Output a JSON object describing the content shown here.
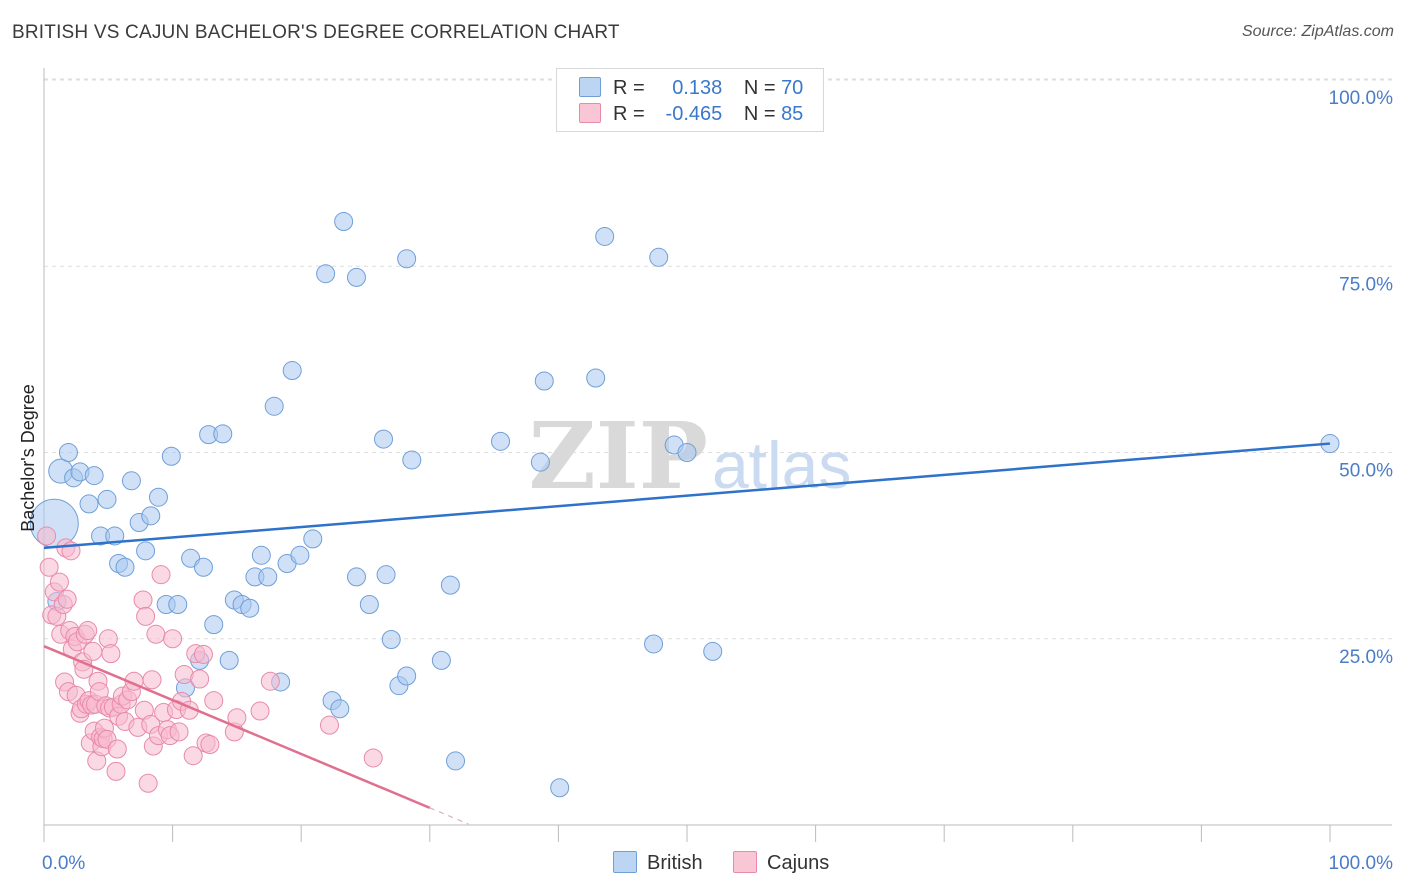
{
  "chart_data": {
    "type": "scatter",
    "title": "BRITISH VS CAJUN BACHELOR'S DEGREE CORRELATION CHART",
    "source": "Source: ZipAtlas.com",
    "ylabel": "Bachelor's Degree",
    "xlim": [
      0,
      100
    ],
    "ylim": [
      0,
      100
    ],
    "x_tick_labels": [
      "0.0%",
      "100.0%"
    ],
    "y_tick_labels": [
      {
        "value": 100,
        "label": "100.0%"
      },
      {
        "value": 75,
        "label": "75.0%"
      },
      {
        "value": 50,
        "label": "50.0%"
      },
      {
        "value": 25,
        "label": "25.0%"
      }
    ],
    "watermark": "ZIPatlas",
    "legend": [
      {
        "name": "British",
        "r_label": "R =",
        "r": "0.138",
        "n_label": "N =",
        "n": "70",
        "color": "#a9c9f0",
        "edge": "#6f9fd8"
      },
      {
        "name": "Cajuns",
        "r_label": "R =",
        "r": "-0.465",
        "n_label": "N =",
        "n": "85",
        "color": "#f7b9cd",
        "edge": "#e88aaa"
      }
    ],
    "series": [
      {
        "name": "British",
        "color": "#a9c9f0",
        "edge": "#6f9fd8",
        "trend": {
          "x0": 0,
          "y0": 37.2,
          "x1": 100,
          "y1": 51.2,
          "color": "#2e72c9"
        },
        "points": [
          [
            0.8,
            40.5,
            24
          ],
          [
            1.3,
            47.5,
            12
          ],
          [
            1.9,
            50.0,
            9
          ],
          [
            2.3,
            46.6,
            9
          ],
          [
            2.8,
            47.4,
            9
          ],
          [
            3.5,
            43.1,
            9
          ],
          [
            3.9,
            46.9,
            9
          ],
          [
            4.4,
            38.8,
            9
          ],
          [
            4.9,
            43.7,
            9
          ],
          [
            5.5,
            38.8,
            9
          ],
          [
            5.8,
            35.1,
            9
          ],
          [
            6.3,
            34.6,
            9
          ],
          [
            6.8,
            46.2,
            9
          ],
          [
            7.4,
            40.6,
            9
          ],
          [
            7.9,
            36.8,
            9
          ],
          [
            8.3,
            41.5,
            9
          ],
          [
            8.9,
            44.0,
            9
          ],
          [
            9.5,
            29.6,
            9
          ],
          [
            9.9,
            49.5,
            9
          ],
          [
            10.4,
            29.6,
            9
          ],
          [
            11.0,
            18.4,
            9
          ],
          [
            11.4,
            35.8,
            9
          ],
          [
            12.1,
            22.1,
            9
          ],
          [
            12.4,
            34.6,
            9
          ],
          [
            12.8,
            52.4,
            9
          ],
          [
            13.2,
            26.9,
            9
          ],
          [
            13.9,
            52.5,
            9
          ],
          [
            14.4,
            22.1,
            9
          ],
          [
            14.8,
            30.2,
            9
          ],
          [
            15.4,
            29.6,
            9
          ],
          [
            16.0,
            29.1,
            9
          ],
          [
            16.4,
            33.3,
            9
          ],
          [
            16.9,
            36.2,
            9
          ],
          [
            17.4,
            33.3,
            9
          ],
          [
            17.9,
            56.2,
            9
          ],
          [
            18.4,
            19.2,
            9
          ],
          [
            18.9,
            35.1,
            9
          ],
          [
            19.3,
            61.0,
            9
          ],
          [
            19.9,
            36.2,
            9
          ],
          [
            20.9,
            38.4,
            9
          ],
          [
            21.9,
            74.0,
            9
          ],
          [
            22.4,
            16.7,
            9
          ],
          [
            23.0,
            15.6,
            9
          ],
          [
            23.3,
            81.0,
            9
          ],
          [
            24.3,
            73.5,
            9
          ],
          [
            24.3,
            33.3,
            9
          ],
          [
            25.3,
            29.6,
            9
          ],
          [
            26.4,
            51.8,
            9
          ],
          [
            26.6,
            33.6,
            9
          ],
          [
            27.0,
            24.9,
            9
          ],
          [
            27.6,
            18.7,
            9
          ],
          [
            28.2,
            76.0,
            9
          ],
          [
            28.6,
            49.0,
            9
          ],
          [
            28.2,
            20.0,
            9
          ],
          [
            30.9,
            22.1,
            9
          ],
          [
            31.6,
            32.2,
            9
          ],
          [
            32.0,
            8.6,
            9
          ],
          [
            35.5,
            51.5,
            9
          ],
          [
            38.6,
            48.7,
            9
          ],
          [
            38.9,
            59.6,
            9
          ],
          [
            40.1,
            5.0,
            9
          ],
          [
            42.9,
            60.0,
            9
          ],
          [
            43.6,
            79.0,
            9
          ],
          [
            47.4,
            24.3,
            9
          ],
          [
            47.8,
            76.2,
            9
          ],
          [
            49.0,
            51.0,
            9
          ],
          [
            50.0,
            50.0,
            9
          ],
          [
            52.0,
            23.3,
            9
          ],
          [
            1.0,
            30.0,
            9
          ],
          [
            100,
            51.2,
            9
          ]
        ]
      },
      {
        "name": "Cajuns",
        "color": "#f7b9cd",
        "edge": "#e88aaa",
        "trend": {
          "x0": 0,
          "y0": 24.0,
          "x1": 30.0,
          "y1": 2.3,
          "color": "#e0708f",
          "dash_to_x": 33.0
        },
        "points": [
          [
            0.2,
            38.8,
            9
          ],
          [
            0.4,
            34.6,
            9
          ],
          [
            0.6,
            28.2,
            9
          ],
          [
            0.8,
            31.3,
            9
          ],
          [
            1.0,
            28.0,
            9
          ],
          [
            1.2,
            32.6,
            9
          ],
          [
            1.3,
            25.6,
            9
          ],
          [
            1.5,
            29.6,
            9
          ],
          [
            1.6,
            19.2,
            9
          ],
          [
            1.7,
            37.2,
            9
          ],
          [
            1.8,
            30.3,
            9
          ],
          [
            1.9,
            17.9,
            9
          ],
          [
            2.0,
            26.1,
            9
          ],
          [
            2.1,
            36.8,
            9
          ],
          [
            2.2,
            23.6,
            9
          ],
          [
            2.4,
            25.3,
            9
          ],
          [
            2.5,
            17.4,
            9
          ],
          [
            2.6,
            24.6,
            9
          ],
          [
            2.8,
            15.0,
            9
          ],
          [
            2.9,
            15.6,
            9
          ],
          [
            3.0,
            21.9,
            9
          ],
          [
            3.1,
            20.9,
            9
          ],
          [
            3.2,
            25.6,
            9
          ],
          [
            3.3,
            16.2,
            9
          ],
          [
            3.4,
            26.1,
            9
          ],
          [
            3.5,
            16.7,
            9
          ],
          [
            3.6,
            11.0,
            9
          ],
          [
            3.7,
            16.1,
            9
          ],
          [
            3.8,
            23.3,
            9
          ],
          [
            3.9,
            12.6,
            9
          ],
          [
            4.0,
            16.2,
            9
          ],
          [
            4.1,
            8.6,
            9
          ],
          [
            4.2,
            19.3,
            9
          ],
          [
            4.3,
            17.9,
            9
          ],
          [
            4.4,
            11.8,
            9
          ],
          [
            4.5,
            10.5,
            9
          ],
          [
            4.6,
            11.6,
            9
          ],
          [
            4.7,
            13.0,
            9
          ],
          [
            4.8,
            16.0,
            9
          ],
          [
            4.9,
            11.5,
            9
          ],
          [
            5.0,
            25.0,
            9
          ],
          [
            5.1,
            15.7,
            9
          ],
          [
            5.2,
            23.0,
            9
          ],
          [
            5.4,
            15.8,
            9
          ],
          [
            5.6,
            7.2,
            9
          ],
          [
            5.7,
            10.2,
            9
          ],
          [
            5.8,
            14.6,
            9
          ],
          [
            6.0,
            16.2,
            9
          ],
          [
            6.1,
            17.3,
            9
          ],
          [
            6.3,
            13.9,
            9
          ],
          [
            6.5,
            16.8,
            9
          ],
          [
            6.8,
            17.9,
            9
          ],
          [
            7.0,
            19.3,
            9
          ],
          [
            7.3,
            13.1,
            9
          ],
          [
            7.7,
            30.2,
            9
          ],
          [
            7.8,
            15.4,
            9
          ],
          [
            7.9,
            28.0,
            9
          ],
          [
            8.1,
            5.6,
            9
          ],
          [
            8.3,
            13.5,
            9
          ],
          [
            8.4,
            19.5,
            9
          ],
          [
            8.5,
            10.6,
            9
          ],
          [
            8.7,
            25.6,
            9
          ],
          [
            8.9,
            12.0,
            9
          ],
          [
            9.1,
            33.6,
            9
          ],
          [
            9.3,
            15.1,
            9
          ],
          [
            9.6,
            12.8,
            9
          ],
          [
            9.8,
            12.0,
            9
          ],
          [
            10.0,
            25.0,
            9
          ],
          [
            10.3,
            15.5,
            9
          ],
          [
            10.5,
            12.5,
            9
          ],
          [
            10.7,
            16.6,
            9
          ],
          [
            10.9,
            20.2,
            9
          ],
          [
            11.3,
            15.4,
            9
          ],
          [
            11.6,
            9.3,
            9
          ],
          [
            11.8,
            23.0,
            9
          ],
          [
            12.1,
            19.6,
            9
          ],
          [
            12.4,
            22.9,
            9
          ],
          [
            12.6,
            11.0,
            9
          ],
          [
            12.9,
            10.8,
            9
          ],
          [
            13.2,
            16.7,
            9
          ],
          [
            14.8,
            12.5,
            9
          ],
          [
            15.0,
            14.4,
            9
          ],
          [
            16.8,
            15.3,
            9
          ],
          [
            17.6,
            19.3,
            9
          ],
          [
            22.2,
            13.4,
            9
          ],
          [
            25.6,
            9.0,
            9
          ]
        ]
      }
    ]
  }
}
